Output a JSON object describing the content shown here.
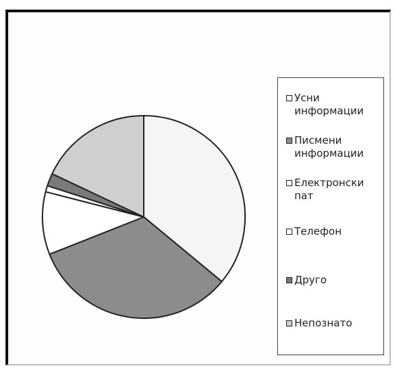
{
  "chart_data": {
    "type": "pie",
    "title": "",
    "slices": [
      {
        "label": "Усни информации",
        "value": 36,
        "color": "#f5f5f5"
      },
      {
        "label": "Писмени информации",
        "value": 33,
        "color": "#8c8c8c"
      },
      {
        "label": "Електронски пат",
        "value": 10,
        "color": "#ffffff"
      },
      {
        "label": "Телефон",
        "value": 1,
        "color": "#ffffff"
      },
      {
        "label": "Друго",
        "value": 2,
        "color": "#7a7a7a"
      },
      {
        "label": "Непознато",
        "value": 18,
        "color": "#cfcfcf"
      }
    ],
    "legend_position": "right"
  }
}
